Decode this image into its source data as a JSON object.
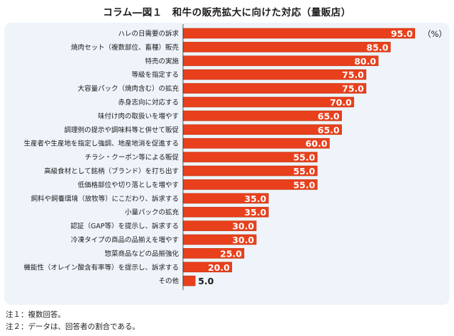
{
  "title": "コラム―図１　和牛の販売拡大に向けた対応（量販店）",
  "unit": "（%）",
  "notes": [
    "注１：複数回答。",
    "注２：データは、回答者の割合である。"
  ],
  "colors": {
    "bar": "#e8401c",
    "barBorder": "#c03010",
    "panel": "#eef4fa",
    "axis": "#333333"
  },
  "chart_data": {
    "type": "bar",
    "orientation": "horizontal",
    "xlim": [
      0,
      100
    ],
    "grid": false,
    "categories": [
      "ハレの日需要の訴求",
      "焼肉セット（複数部位、畜種）販売",
      "特売の実施",
      "等級を指定する",
      "大容量パック（焼肉含む）の拡充",
      "赤身志向に対応する",
      "味付け肉の取扱いを増やす",
      "調理例の提示や調味料等と併せて販促",
      "生産者や生産地を指定し強調、地産地消を促進する",
      "チラシ・クーポン等による販促",
      "高級食材として銘柄（ブランド）を打ち出す",
      "低価格部位や切り落としを増やす",
      "飼料や飼養環境（放牧等）にこだわり、訴求する",
      "小量パックの拡充",
      "認証（GAP等）を提示し、訴求する",
      "冷凍タイプの商品の品揃えを増やす",
      "惣菜商品などの品揃強化",
      "機能性（オレイン酸含有率等）を提示し、訴求する",
      "その他"
    ],
    "values": [
      95.0,
      85.0,
      80.0,
      75.0,
      75.0,
      70.0,
      65.0,
      65.0,
      60.0,
      55.0,
      55.0,
      55.0,
      35.0,
      35.0,
      30.0,
      30.0,
      25.0,
      20.0,
      5.0
    ],
    "value_labels": [
      "95.0",
      "85.0",
      "80.0",
      "75.0",
      "75.0",
      "70.0",
      "65.0",
      "65.0",
      "60.0",
      "55.0",
      "55.0",
      "55.0",
      "35.0",
      "35.0",
      "30.0",
      "30.0",
      "25.0",
      "20.0",
      "5.0"
    ]
  }
}
